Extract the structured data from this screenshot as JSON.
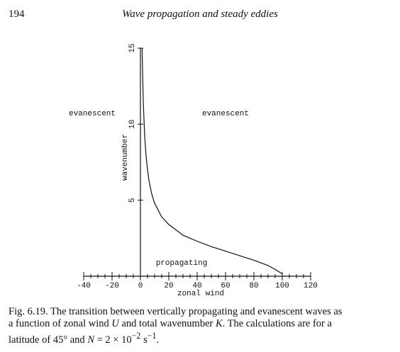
{
  "header": {
    "page": "194",
    "title": "Wave propagation and steady eddies"
  },
  "chart_data": {
    "type": "line",
    "xlabel": "zonal wind",
    "ylabel": "wavenumber",
    "xlim": [
      -40,
      120
    ],
    "ylim": [
      0,
      15
    ],
    "xticks": [
      -40,
      -20,
      0,
      20,
      40,
      60,
      80,
      100,
      120
    ],
    "yticks": [
      5,
      10,
      15
    ],
    "x_minor_ticks": [
      -35,
      -30,
      -25,
      -15,
      -10,
      -5,
      5,
      10,
      15,
      25,
      30,
      35,
      45,
      50,
      55,
      65,
      70,
      75,
      85,
      90,
      95,
      105,
      110,
      115
    ],
    "series": [
      {
        "color": "#111111",
        "x": [
          1.2,
          1.5,
          2,
          3,
          4,
          5,
          6,
          8,
          10,
          15,
          20,
          30,
          40,
          50,
          60,
          70,
          80,
          90,
          95,
          100
        ],
        "values": [
          15,
          13.5,
          11.5,
          9.2,
          7.9,
          7.0,
          6.3,
          5.4,
          4.8,
          3.9,
          3.4,
          2.7,
          2.3,
          1.95,
          1.65,
          1.35,
          1.05,
          0.7,
          0.45,
          0.15
        ]
      }
    ],
    "annotations": [
      "evanescent",
      "evanescent",
      "propagating"
    ]
  },
  "caption": [
    [
      "Fig. 6.19. The transition between vertically propagating and evanescent waves as"
    ],
    [
      "a function of zonal wind ",
      "U",
      " and total wavenumber ",
      "K",
      ". The calculations are for a"
    ],
    [
      "latitude of 45° and ",
      "N",
      " = 2 × 10",
      "−2",
      " s",
      "−1",
      "."
    ]
  ]
}
